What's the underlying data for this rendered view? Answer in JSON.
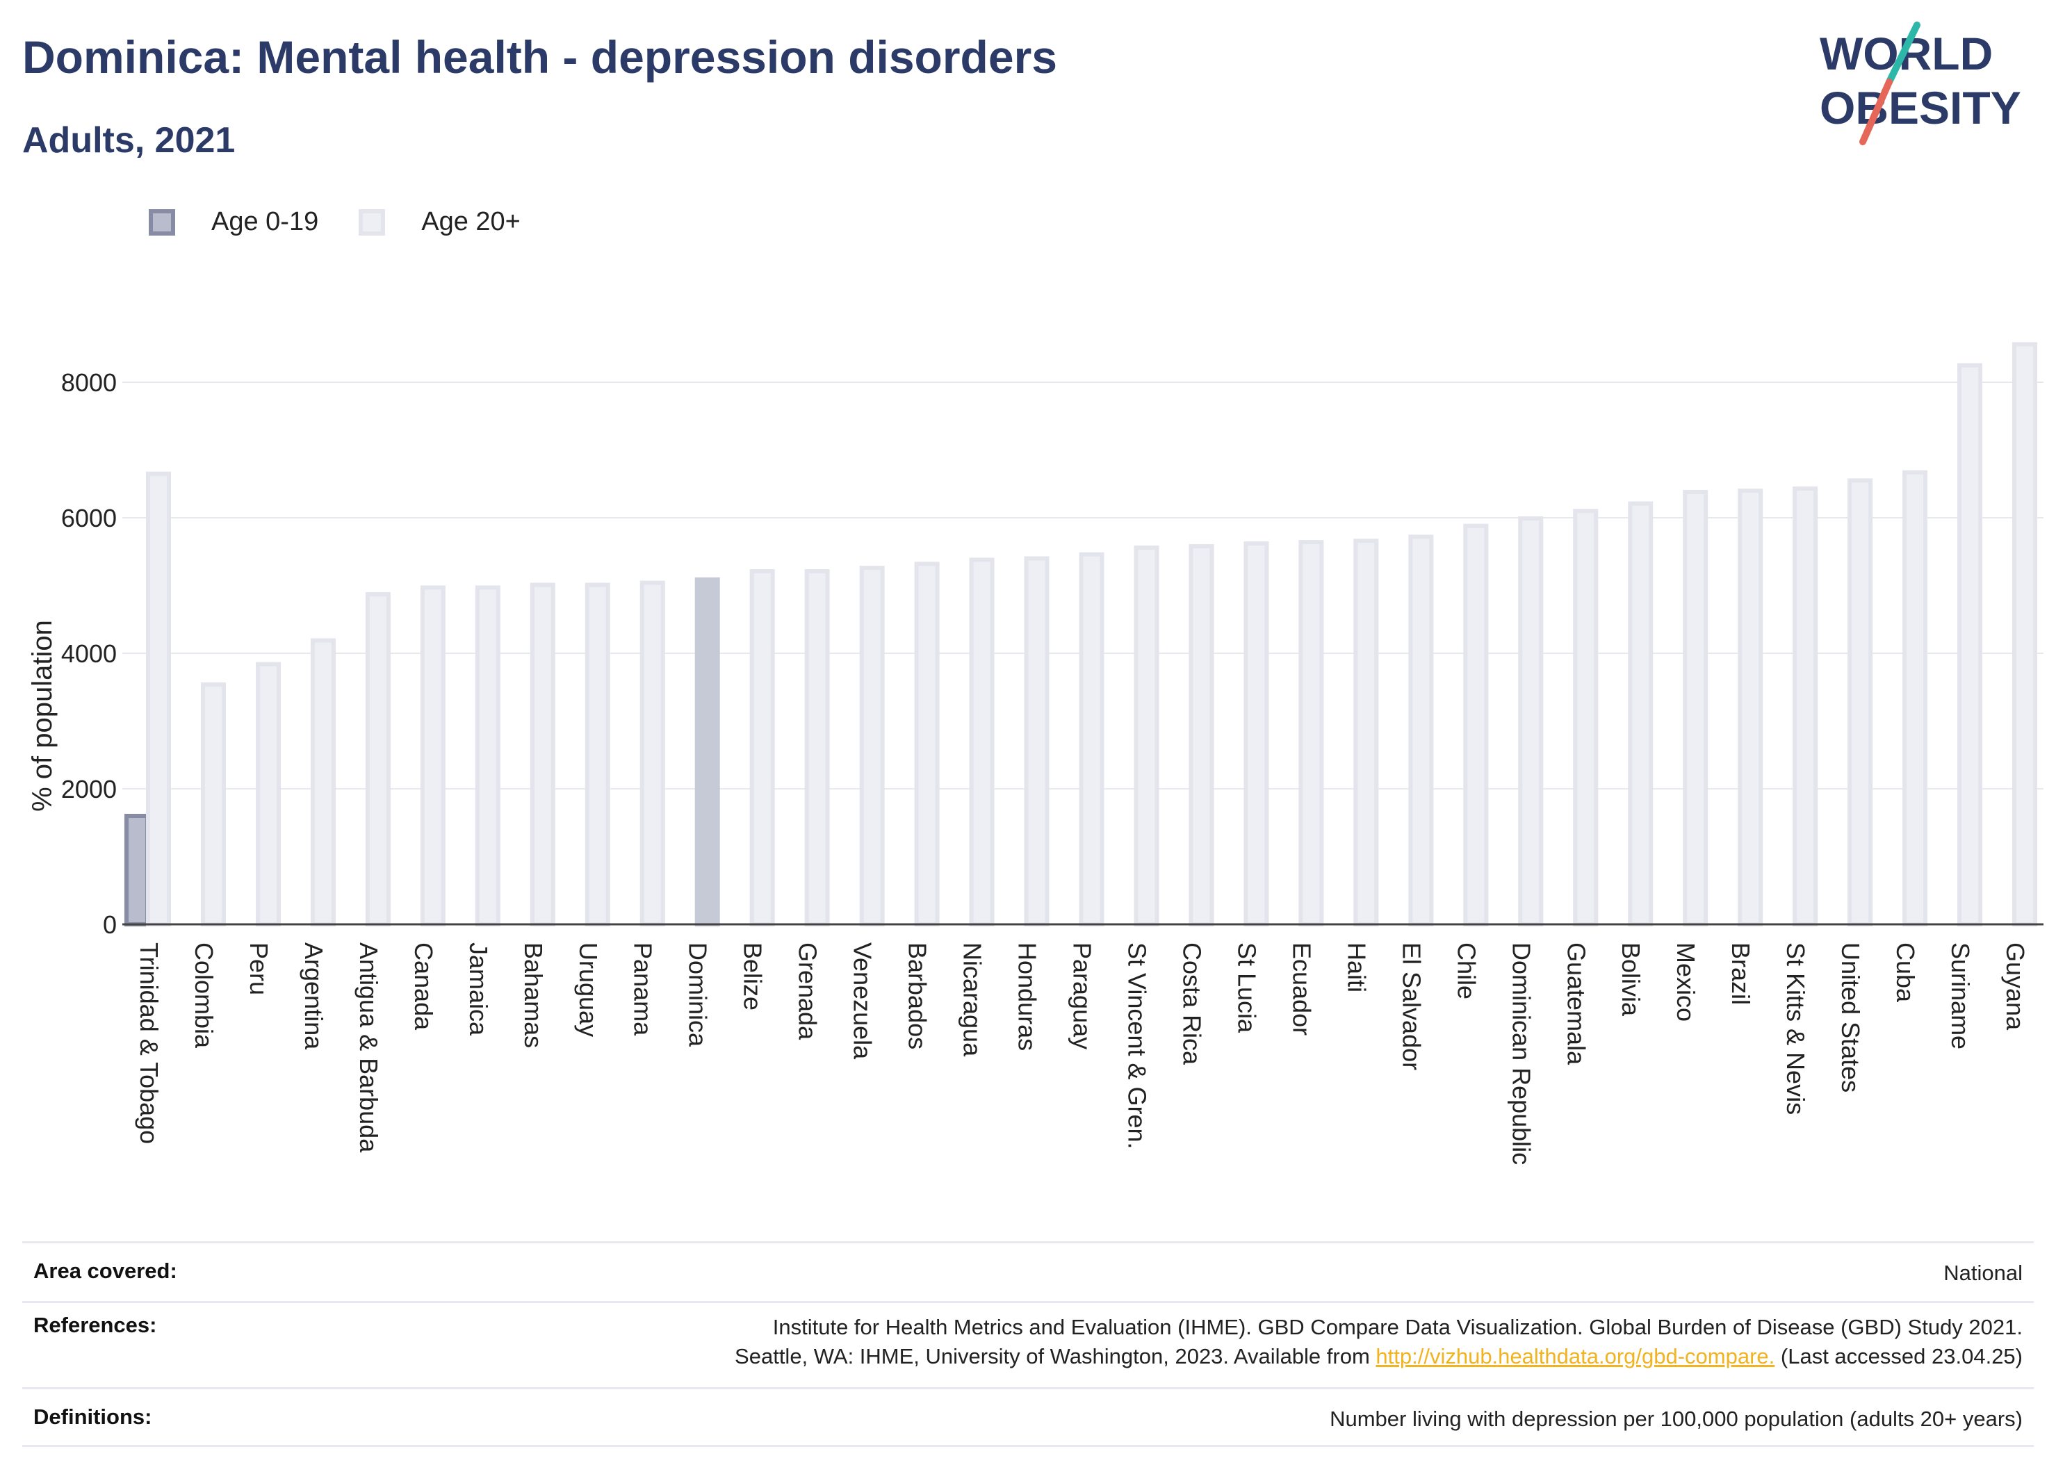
{
  "header": {
    "title": "Dominica: Mental health - depression disorders",
    "subtitle": "Adults, 2021"
  },
  "logo": {
    "line1": "WORLD",
    "line2": "OBESITY"
  },
  "legend": [
    {
      "label": "Age 0-19"
    },
    {
      "label": "Age 20+"
    }
  ],
  "colors": {
    "age_0_19_fill": "#b9bccd",
    "age_0_19_stroke": "#878ba4",
    "age_20_fill": "#eeeff4",
    "age_20_stroke": "#e3e4ec",
    "highlight": "#c6c9d6",
    "title": "#2b3a67",
    "link": "#f2b320",
    "logo_teal": "#2cb7a9",
    "logo_red": "#e5675a"
  },
  "chart_data": {
    "type": "bar",
    "ylabel": "% of population",
    "ylim": [
      0,
      8700
    ],
    "yticks": [
      0,
      2000,
      4000,
      6000,
      8000
    ],
    "grid": true,
    "legend_position": "top-left",
    "highlight": "Dominica",
    "categories": [
      "Trinidad & Tobago",
      "Colombia",
      "Peru",
      "Argentina",
      "Antigua & Barbuda",
      "Canada",
      "Jamaica",
      "Bahamas",
      "Uruguay",
      "Panama",
      "Dominica",
      "Belize",
      "Grenada",
      "Venezuela",
      "Barbados",
      "Nicaragua",
      "Honduras",
      "Paraguay",
      "St Vincent & Gren.",
      "Costa Rica",
      "St Lucia",
      "Ecuador",
      "Haiti",
      "El Salvador",
      "Chile",
      "Dominican Republic",
      "Guatemala",
      "Bolivia",
      "Mexico",
      "Brazil",
      "St Kitts & Nevis",
      "United States",
      "Cuba",
      "Suriname",
      "Guyana"
    ],
    "series": [
      {
        "name": "Age 0-19",
        "values": [
          1600,
          null,
          null,
          null,
          null,
          null,
          null,
          null,
          null,
          null,
          null,
          null,
          null,
          null,
          null,
          null,
          null,
          null,
          null,
          null,
          null,
          null,
          null,
          null,
          null,
          null,
          null,
          null,
          null,
          null,
          null,
          null,
          null,
          null,
          null
        ]
      },
      {
        "name": "Age 20+",
        "values": [
          6650,
          3540,
          3840,
          4190,
          4870,
          4970,
          4970,
          5010,
          5010,
          5040,
          5090,
          5210,
          5210,
          5260,
          5320,
          5380,
          5400,
          5460,
          5560,
          5580,
          5620,
          5640,
          5660,
          5720,
          5880,
          5990,
          6100,
          6210,
          6380,
          6400,
          6430,
          6550,
          6670,
          8250,
          8560
        ]
      }
    ]
  },
  "info": {
    "area_label": "Area covered:",
    "area_value": "National",
    "references_label": "References:",
    "references_line1": "Institute for Health Metrics and Evaluation (IHME). GBD Compare Data Visualization. Global Burden of Disease (GBD) Study 2021.",
    "references_line2_pre": "Seattle, WA: IHME, University of Washington, 2023. Available from ",
    "references_link": "http://vizhub.healthdata.org/gbd-compare.",
    "references_line2_post": " (Last accessed 23.04.25)",
    "definitions_label": "Definitions:",
    "definitions_value": "Number living with depression per 100,000 population (adults 20+ years)"
  }
}
